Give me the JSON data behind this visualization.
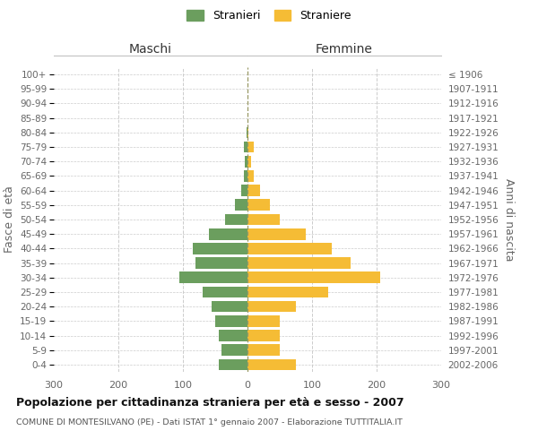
{
  "age_groups_bottom_to_top": [
    "0-4",
    "5-9",
    "10-14",
    "15-19",
    "20-24",
    "25-29",
    "30-34",
    "35-39",
    "40-44",
    "45-49",
    "50-54",
    "55-59",
    "60-64",
    "65-69",
    "70-74",
    "75-79",
    "80-84",
    "85-89",
    "90-94",
    "95-99",
    "100+"
  ],
  "birth_years_bottom_to_top": [
    "2002-2006",
    "1997-2001",
    "1992-1996",
    "1987-1991",
    "1982-1986",
    "1977-1981",
    "1972-1976",
    "1967-1971",
    "1962-1966",
    "1957-1961",
    "1952-1956",
    "1947-1951",
    "1942-1946",
    "1937-1941",
    "1932-1936",
    "1927-1931",
    "1922-1926",
    "1917-1921",
    "1912-1916",
    "1907-1911",
    "≤ 1906"
  ],
  "maschi_bottom_to_top": [
    45,
    40,
    45,
    50,
    55,
    70,
    105,
    80,
    85,
    60,
    35,
    20,
    10,
    5,
    4,
    5,
    2,
    0,
    0,
    0,
    0
  ],
  "femmine_bottom_to_top": [
    75,
    50,
    50,
    50,
    75,
    125,
    205,
    160,
    130,
    90,
    50,
    35,
    20,
    10,
    5,
    10,
    2,
    0,
    0,
    0,
    0
  ],
  "maschi_color": "#6b9e5e",
  "femmine_color": "#f5bc35",
  "background_color": "#ffffff",
  "grid_color": "#cccccc",
  "title": "Popolazione per cittadinanza straniera per età e sesso - 2007",
  "subtitle": "COMUNE DI MONTESILVANO (PE) - Dati ISTAT 1° gennaio 2007 - Elaborazione TUTTITALIA.IT",
  "xlabel_left": "Maschi",
  "xlabel_right": "Femmine",
  "ylabel_left": "Fasce di età",
  "ylabel_right": "Anni di nascita",
  "legend_stranieri": "Stranieri",
  "legend_straniere": "Straniere",
  "xlim": 300,
  "dashed_line_color": "#999966"
}
